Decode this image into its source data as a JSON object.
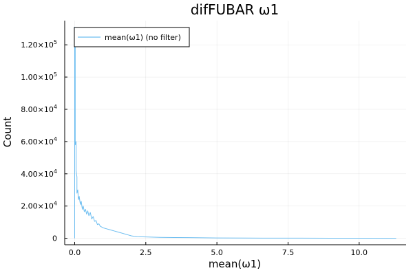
{
  "chart_data": {
    "type": "line",
    "title": "difFUBAR ω1",
    "xlabel": "mean(ω1)",
    "ylabel": "Count",
    "xlim": [
      -0.35,
      11.65
    ],
    "ylim": [
      -4000,
      135000
    ],
    "grid": true,
    "legend_position": "top-left",
    "x_ticks": [
      {
        "value": 0,
        "label": "0.0"
      },
      {
        "value": 2.5,
        "label": "2.5"
      },
      {
        "value": 5,
        "label": "5.0"
      },
      {
        "value": 7.5,
        "label": "7.5"
      },
      {
        "value": 10,
        "label": "10.0"
      }
    ],
    "y_ticks": [
      {
        "value": 0,
        "mant": "0",
        "exp": ""
      },
      {
        "value": 20000,
        "mant": "2.00×10",
        "exp": "4"
      },
      {
        "value": 40000,
        "mant": "4.00×10",
        "exp": "4"
      },
      {
        "value": 60000,
        "mant": "6.00×10",
        "exp": "4"
      },
      {
        "value": 80000,
        "mant": "8.00×10",
        "exp": "4"
      },
      {
        "value": 100000,
        "mant": "1.00×10",
        "exp": "5"
      },
      {
        "value": 120000,
        "mant": "1.20×10",
        "exp": "5"
      }
    ],
    "series": [
      {
        "name": "mean(ω1) (no filter)",
        "color": "#6cbdf0",
        "x": [
          0,
          0,
          0.02,
          0.02,
          0.05,
          0.05,
          0.08,
          0.08,
          0.11,
          0.13,
          0.16,
          0.2,
          0.23,
          0.27,
          0.3,
          0.34,
          0.38,
          0.42,
          0.46,
          0.5,
          0.55,
          0.6,
          0.65,
          0.7,
          0.75,
          0.8,
          0.85,
          0.9,
          0.95,
          1.0,
          1.1,
          1.2,
          1.3,
          1.4,
          1.5,
          1.6,
          1.7,
          1.8,
          1.9,
          2.0,
          2.1,
          2.2,
          2.4,
          2.6,
          3.0,
          3.5,
          4.0,
          4.5,
          5.0,
          6.0,
          7.0,
          8.0,
          9.0,
          10.0,
          11.3
        ],
        "y": [
          0,
          131000,
          130000,
          58000,
          60000,
          42000,
          38000,
          28000,
          30000,
          24000,
          26000,
          21000,
          23000,
          18000,
          20000,
          16500,
          18000,
          15000,
          17000,
          14000,
          16000,
          12000,
          13500,
          10500,
          11000,
          8500,
          9000,
          7500,
          7000,
          6500,
          6000,
          5500,
          5000,
          4500,
          4000,
          3500,
          3000,
          2500,
          2000,
          1500,
          1200,
          1000,
          900,
          800,
          600,
          500,
          400,
          300,
          200,
          150,
          100,
          80,
          60,
          40,
          20
        ]
      }
    ]
  }
}
